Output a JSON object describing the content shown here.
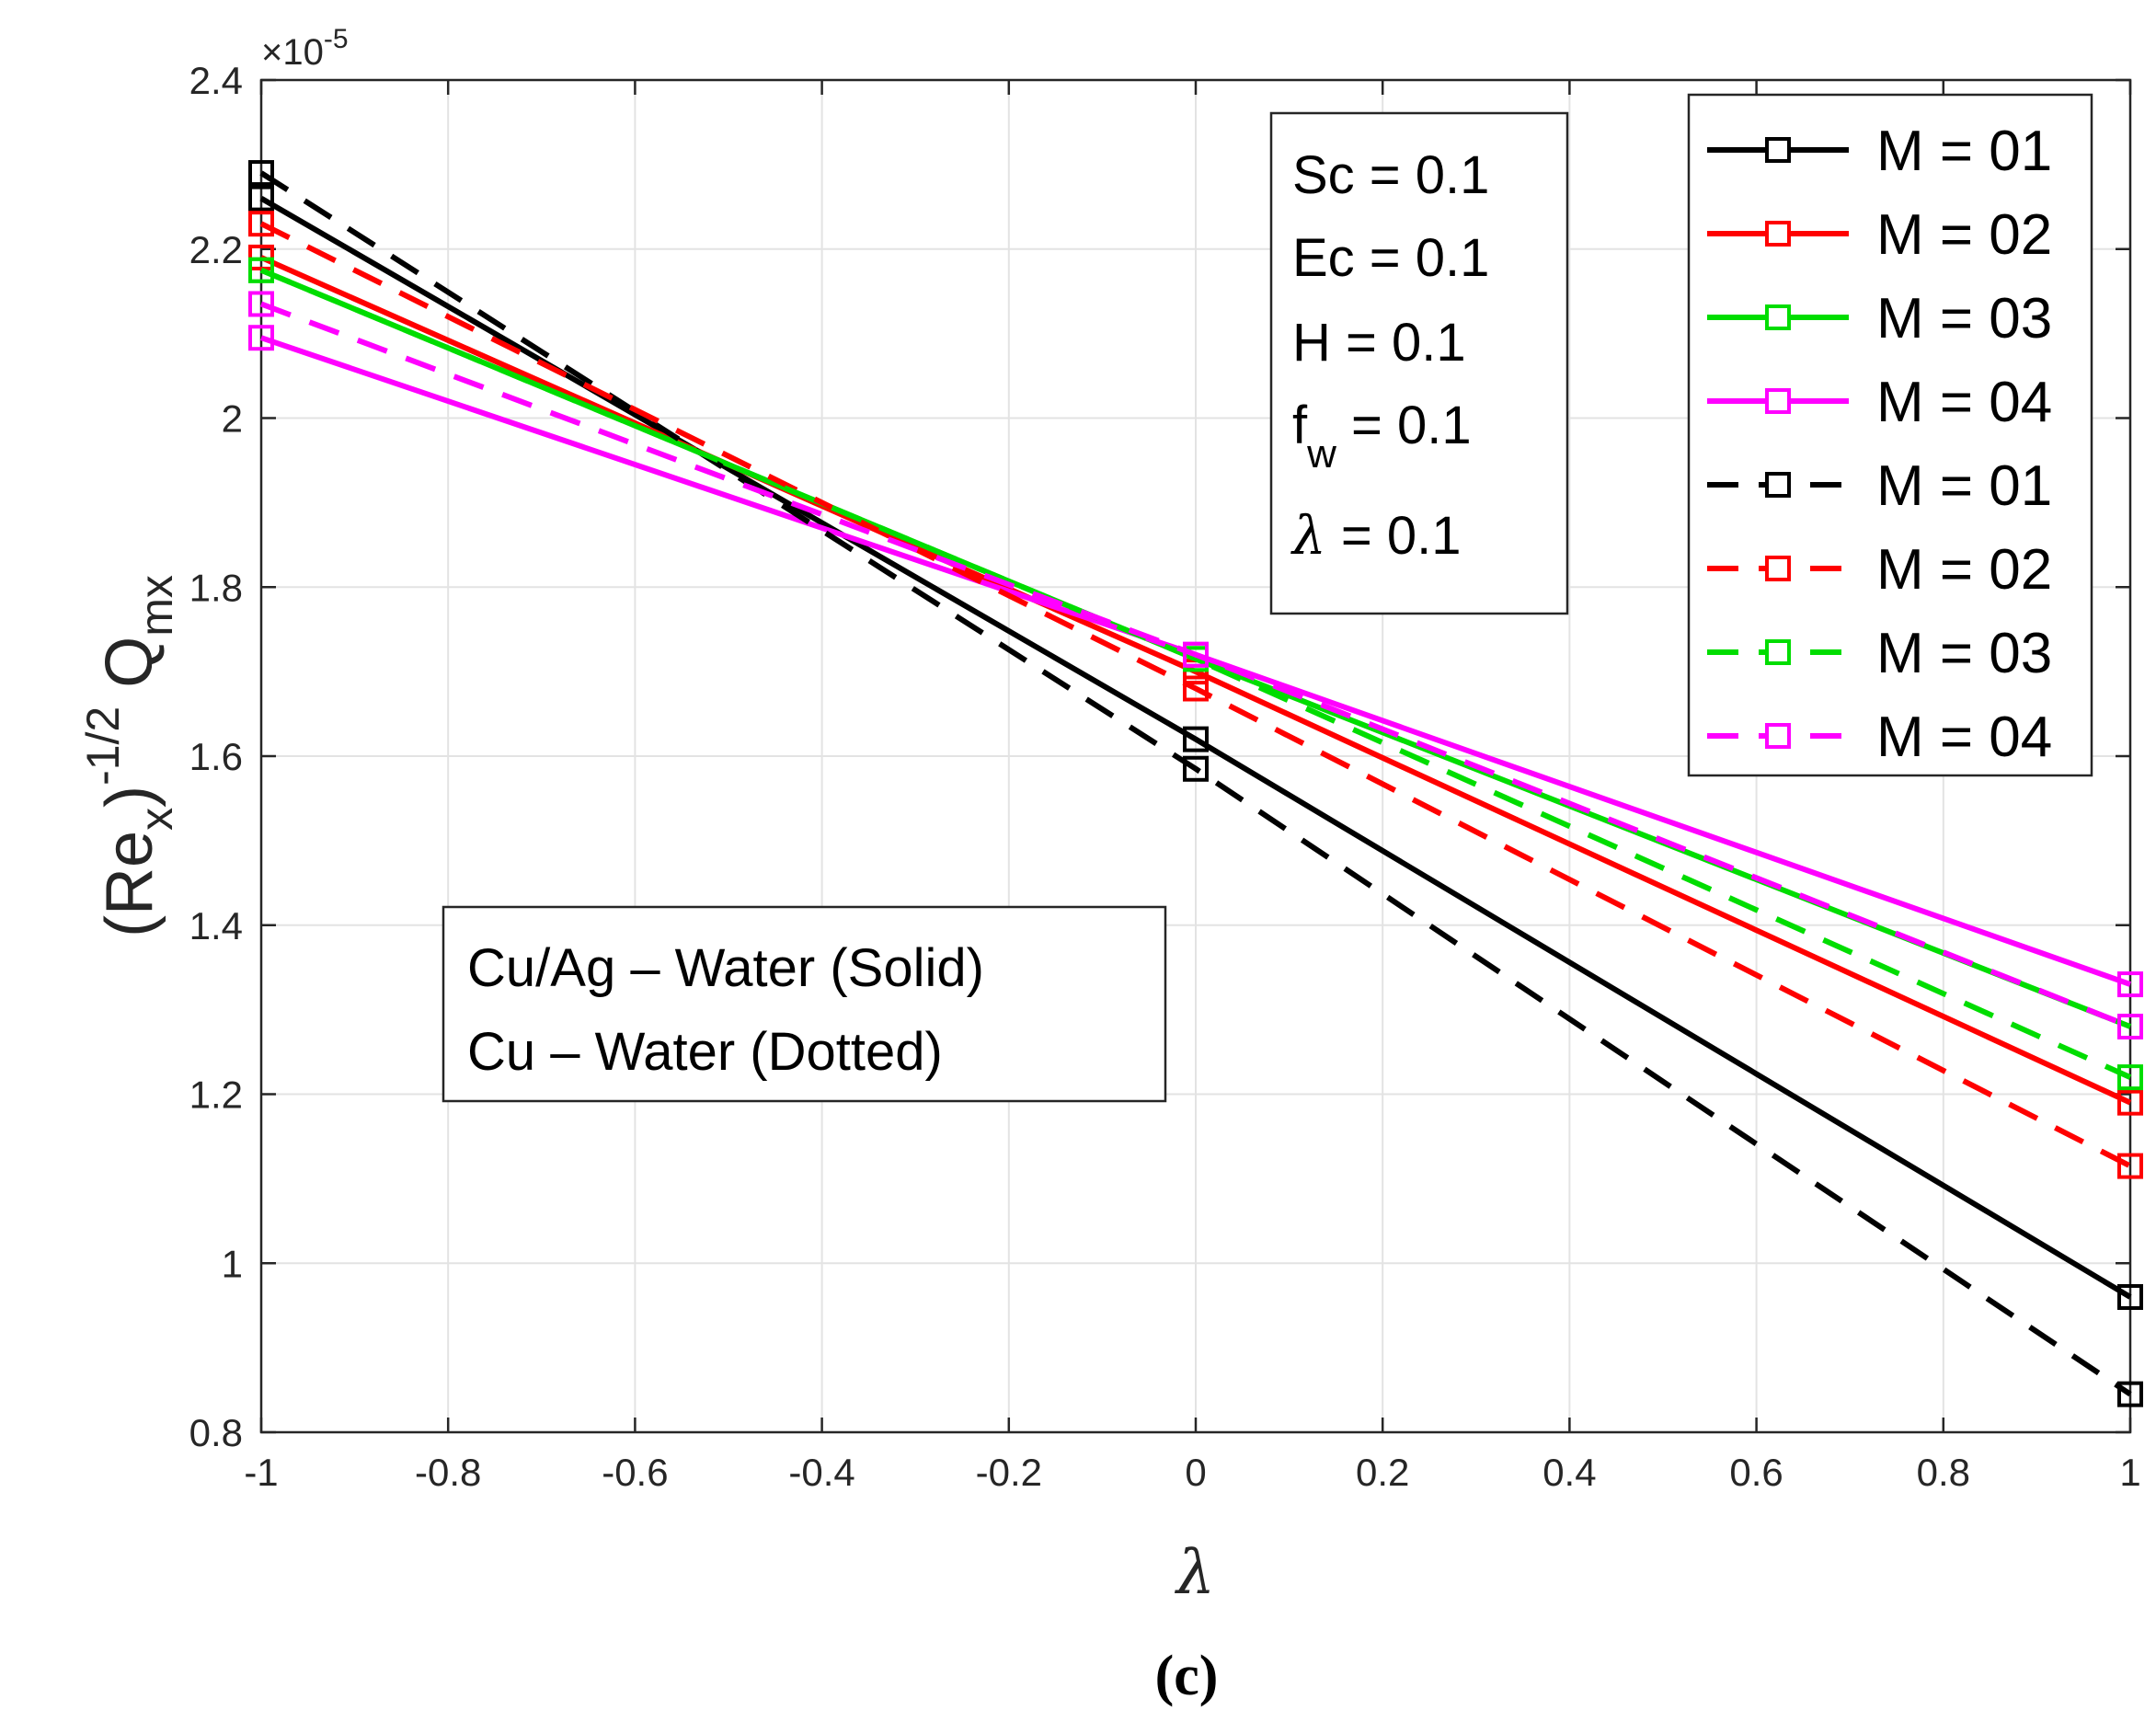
{
  "chart_data": {
    "type": "line",
    "x": [
      -1,
      0,
      1
    ],
    "xlabel": "λ",
    "ylabel": {
      "open": "(Re",
      "sub_x": "x",
      "close": ")",
      "sup": "-1/2",
      "q": "Q",
      "sub_mx": "mx"
    },
    "exponent": {
      "prefix": "×10",
      "power": "-5"
    },
    "xlim": [
      -1,
      1
    ],
    "ylim": [
      0.8,
      2.4
    ],
    "xticks": [
      -1,
      -0.8,
      -0.6,
      -0.4,
      -0.2,
      0,
      0.2,
      0.4,
      0.6,
      0.8,
      1
    ],
    "xtick_labels": [
      "-1",
      "-0.8",
      "-0.6",
      "-0.4",
      "-0.2",
      "0",
      "0.2",
      "0.4",
      "0.6",
      "0.8",
      "1"
    ],
    "yticks": [
      0.8,
      1,
      1.2,
      1.4,
      1.6,
      1.8,
      2,
      2.2,
      2.4
    ],
    "ytick_labels": [
      "0.8",
      "1",
      "1.2",
      "1.4",
      "1.6",
      "1.8",
      "2",
      "2.2",
      "2.4"
    ],
    "grid": true,
    "legend_position": "top-right",
    "series": [
      {
        "name": "M = 01",
        "color": "#000000",
        "style": "solid",
        "values": [
          2.26,
          1.62,
          0.96
        ]
      },
      {
        "name": "M = 02",
        "color": "#ff0000",
        "style": "solid",
        "values": [
          2.19,
          1.7,
          1.19
        ]
      },
      {
        "name": "M = 03",
        "color": "#00dd00",
        "style": "solid",
        "values": [
          2.175,
          1.715,
          1.28
        ]
      },
      {
        "name": "M = 04",
        "color": "#ff00ff",
        "style": "solid",
        "values": [
          2.095,
          1.72,
          1.33
        ]
      },
      {
        "name": "M = 01",
        "color": "#000000",
        "style": "dashed",
        "values": [
          2.29,
          1.585,
          0.845
        ]
      },
      {
        "name": "M = 02",
        "color": "#ff0000",
        "style": "dashed",
        "values": [
          2.23,
          1.68,
          1.115
        ]
      },
      {
        "name": "M = 03",
        "color": "#00dd00",
        "style": "dashed",
        "values": [
          2.175,
          1.715,
          1.22
        ]
      },
      {
        "name": "M = 04",
        "color": "#ff00ff",
        "style": "dashed",
        "values": [
          2.135,
          1.72,
          1.28
        ]
      }
    ],
    "params_box": {
      "sc": "Sc = 0.1",
      "ec": "Ec = 0.1",
      "h": "H = 0.1",
      "fw_f": "f",
      "fw_sub": "w",
      "fw_rest": " = 0.1",
      "lambda_sym": "λ",
      "lambda_rest": " = 0.1"
    },
    "annotation": {
      "line1": "Cu/Ag – Water (Solid)",
      "line2": "Cu – Water (Dotted)"
    },
    "caption": "(c)"
  }
}
